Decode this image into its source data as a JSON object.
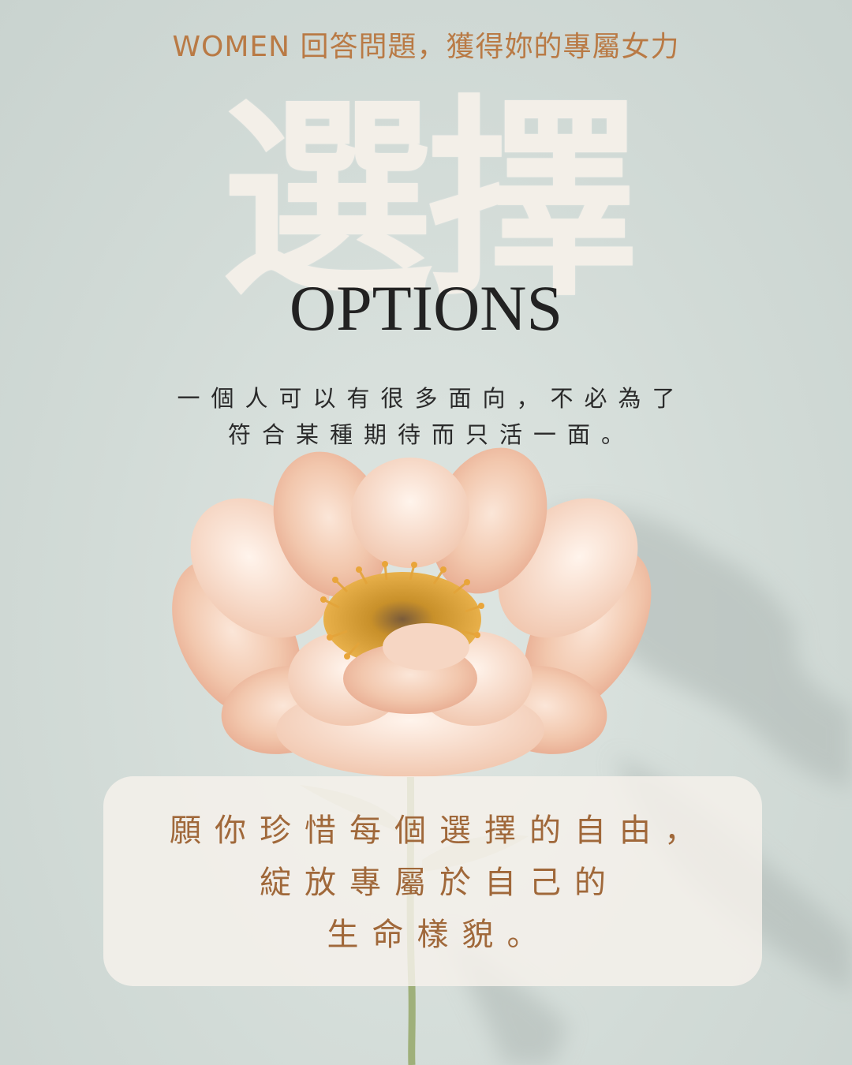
{
  "header": {
    "tagline": "WOMEN 回答問題，獲得妳的專屬女力"
  },
  "title": {
    "chinese": "選擇",
    "english": "OPTIONS"
  },
  "subtitle": {
    "line1": "一個人可以有很多面向，不必為了",
    "line2": "符合某種期待而只活一面。"
  },
  "quote": {
    "line1": "願你珍惜每個選擇的自由，",
    "line2": "綻放專屬於自己的",
    "line3": "生命樣貌。"
  },
  "colors": {
    "background": "#d3dcd8",
    "accent": "#b97a45",
    "title": "#f3efe8",
    "petal": "#f2c7ad",
    "quote_text": "#a0683a"
  }
}
